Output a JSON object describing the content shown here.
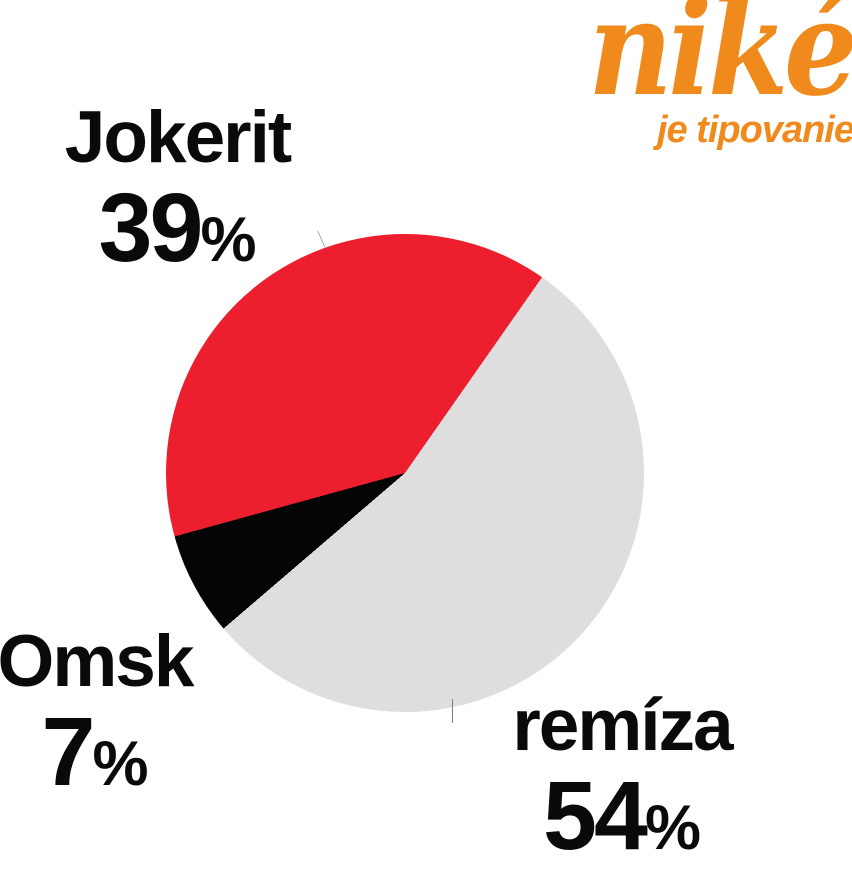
{
  "brand": {
    "logo_text": "niké",
    "tagline": "je tipovanie",
    "color": "#F08A1C"
  },
  "chart_data": {
    "type": "pie",
    "title": "",
    "start_angle_deg": 35,
    "direction": "clockwise",
    "slices": [
      {
        "label": "remíza",
        "value": 54,
        "unit": "%",
        "color": "#DEDEDE"
      },
      {
        "label": "Omsk",
        "value": 7,
        "unit": "%",
        "color": "#050505"
      },
      {
        "label": "Jokerit",
        "value": 39,
        "unit": "%",
        "color": "#ED1E2E"
      }
    ],
    "text_color": "#0a0a0a",
    "legend": "labels placed around pie"
  }
}
